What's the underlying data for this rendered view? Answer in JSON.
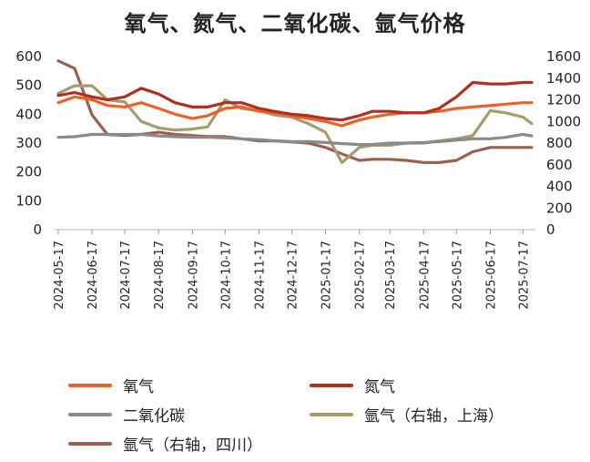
{
  "chart_data": {
    "type": "line",
    "title": "氧气、氮气、二氧化碳、氩气价格",
    "x_ticks": [
      "2024-05-17",
      "2024-06-17",
      "2024-07-17",
      "2024-08-17",
      "2024-09-17",
      "2024-10-17",
      "2024-11-17",
      "2024-12-17",
      "2025-01-17",
      "2025-02-17",
      "2025-03-17",
      "2025-04-17",
      "2025-05-17",
      "2025-06-17",
      "2025-07-17"
    ],
    "y_left": {
      "ticks": [
        0,
        100,
        200,
        300,
        400,
        500,
        600
      ],
      "ylim": [
        0,
        600
      ]
    },
    "y_right": {
      "ticks": [
        0,
        200,
        400,
        600,
        800,
        1000,
        1200,
        1400,
        1600
      ],
      "ylim": [
        0,
        1600
      ]
    },
    "x": [
      "2024-05-17",
      "2024-06-01",
      "2024-06-17",
      "2024-07-01",
      "2024-07-17",
      "2024-08-01",
      "2024-08-17",
      "2024-09-01",
      "2024-09-17",
      "2024-10-01",
      "2024-10-17",
      "2024-11-01",
      "2024-11-17",
      "2024-12-01",
      "2024-12-17",
      "2025-01-01",
      "2025-01-17",
      "2025-02-01",
      "2025-02-17",
      "2025-03-01",
      "2025-03-17",
      "2025-04-01",
      "2025-04-17",
      "2025-05-01",
      "2025-05-17",
      "2025-06-01",
      "2025-06-17",
      "2025-07-01",
      "2025-07-17",
      "2025-07-25"
    ],
    "series": [
      {
        "name": "氧气",
        "axis": "left",
        "color": "#e8622a",
        "values": [
          440,
          460,
          450,
          430,
          425,
          440,
          420,
          400,
          385,
          395,
          420,
          425,
          410,
          405,
          395,
          385,
          375,
          360,
          380,
          390,
          400,
          405,
          405,
          410,
          420,
          425,
          430,
          435,
          440,
          440
        ]
      },
      {
        "name": "氮气",
        "axis": "left",
        "color": "#b03020",
        "values": [
          465,
          475,
          460,
          450,
          460,
          490,
          470,
          440,
          425,
          425,
          440,
          440,
          420,
          410,
          400,
          395,
          385,
          380,
          395,
          410,
          410,
          405,
          405,
          420,
          460,
          510,
          505,
          505,
          510,
          510
        ]
      },
      {
        "name": "二氧化碳",
        "axis": "left",
        "color": "#8a8a8a",
        "values": [
          320,
          322,
          330,
          330,
          330,
          330,
          325,
          322,
          320,
          320,
          318,
          315,
          312,
          308,
          305,
          305,
          302,
          298,
          295,
          295,
          300,
          300,
          302,
          305,
          310,
          315,
          315,
          320,
          330,
          325
        ]
      },
      {
        "name": "氩气（右轴，上海）",
        "axis": "right",
        "color": "#a89a6a",
        "values": [
          1260,
          1330,
          1330,
          1200,
          1180,
          1000,
          940,
          920,
          930,
          950,
          1200,
          1120,
          1100,
          1060,
          1040,
          980,
          900,
          620,
          760,
          780,
          780,
          800,
          800,
          820,
          840,
          870,
          1100,
          1080,
          1040,
          980
        ]
      },
      {
        "name": "氩气（右轴，四川）",
        "axis": "right",
        "color": "#9c6050",
        "values": [
          1560,
          1490,
          1060,
          880,
          870,
          880,
          900,
          880,
          870,
          860,
          860,
          840,
          820,
          820,
          810,
          800,
          760,
          700,
          640,
          650,
          650,
          640,
          620,
          620,
          640,
          720,
          760,
          760,
          760,
          760
        ]
      }
    ]
  }
}
